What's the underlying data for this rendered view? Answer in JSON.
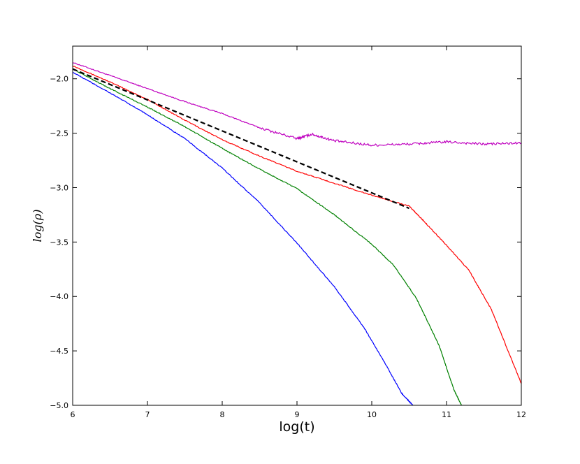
{
  "chart_data": {
    "type": "line",
    "title": "",
    "xlabel": "log(t)",
    "ylabel": "log(ρ)",
    "xlim": [
      6,
      12
    ],
    "ylim": [
      -5.0,
      -1.7
    ],
    "xticks": [
      "6",
      "7",
      "8",
      "9",
      "10",
      "11",
      "12"
    ],
    "yticks": [
      "−2.0",
      "−2.5",
      "−3.0",
      "−3.5",
      "−4.0",
      "−4.5",
      "−5.0"
    ],
    "grid": false,
    "legend": "none",
    "series": [
      {
        "color": "#bf00bf",
        "style": "solid",
        "x": [
          6.0,
          6.5,
          7.0,
          7.5,
          8.0,
          8.5,
          9.0,
          9.2,
          9.5,
          10.0,
          10.5,
          11.0,
          11.5,
          12.0
        ],
        "y": [
          -1.85,
          -1.97,
          -2.09,
          -2.21,
          -2.32,
          -2.45,
          -2.55,
          -2.51,
          -2.57,
          -2.61,
          -2.6,
          -2.58,
          -2.6,
          -2.59
        ]
      },
      {
        "color": "#ff0000",
        "style": "solid",
        "x": [
          6.0,
          6.5,
          7.0,
          7.5,
          8.0,
          8.5,
          9.0,
          9.5,
          10.0,
          10.5,
          10.7,
          11.0,
          11.3,
          11.6,
          12.0
        ],
        "y": [
          -1.88,
          -2.03,
          -2.19,
          -2.38,
          -2.56,
          -2.71,
          -2.85,
          -2.96,
          -3.07,
          -3.17,
          -3.31,
          -3.53,
          -3.76,
          -4.12,
          -4.8
        ]
      },
      {
        "color": "#008000",
        "style": "solid",
        "x": [
          6.0,
          6.5,
          7.0,
          7.5,
          8.0,
          8.5,
          9.0,
          9.5,
          10.0,
          10.3,
          10.6,
          10.9,
          11.1,
          11.2
        ],
        "y": [
          -1.91,
          -2.09,
          -2.26,
          -2.44,
          -2.64,
          -2.83,
          -3.01,
          -3.25,
          -3.52,
          -3.72,
          -4.02,
          -4.45,
          -4.86,
          -5.0
        ]
      },
      {
        "color": "#0000ff",
        "style": "solid",
        "x": [
          6.0,
          6.5,
          7.0,
          7.5,
          8.0,
          8.5,
          9.0,
          9.5,
          9.9,
          10.2,
          10.4,
          10.55
        ],
        "y": [
          -1.94,
          -2.13,
          -2.33,
          -2.55,
          -2.82,
          -3.14,
          -3.51,
          -3.91,
          -4.29,
          -4.64,
          -4.89,
          -5.0
        ]
      },
      {
        "color": "#000000",
        "style": "dashed",
        "x": [
          6.0,
          10.5
        ],
        "y": [
          -1.91,
          -3.19
        ]
      }
    ]
  }
}
